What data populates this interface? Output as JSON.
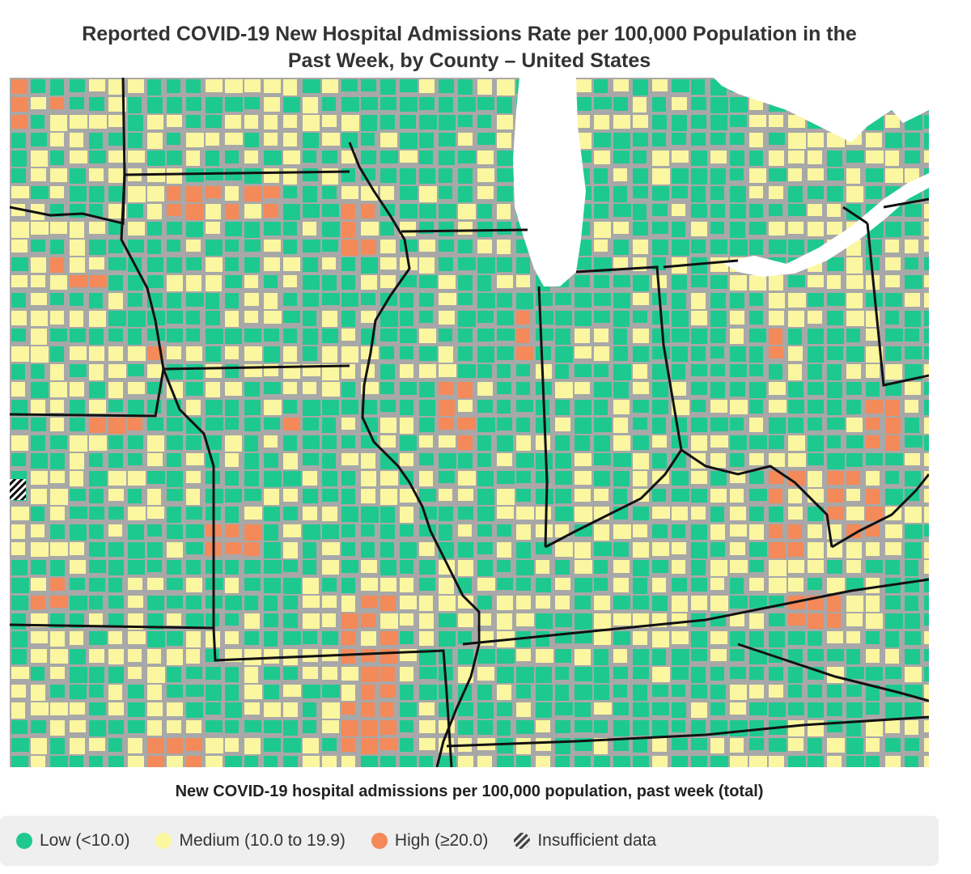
{
  "title_line1": "Reported COVID-19 New Hospital Admissions Rate per 100,000 Population in the",
  "title_line2": "Past Week, by County – United States",
  "subtitle": "New COVID-19 hospital admissions per 100,000 population, past week (total)",
  "colors": {
    "low": "#1ec98f",
    "medium": "#fbf6a0",
    "high": "#f4895a",
    "border": "#a8a8a8",
    "water": "#ffffff",
    "state_line": "#111111"
  },
  "legend": [
    {
      "key": "low",
      "label": "Low (<10.0)"
    },
    {
      "key": "medium",
      "label": "Medium (10.0 to 19.9)"
    },
    {
      "key": "high",
      "label": "High (≥20.0)"
    },
    {
      "key": "insufficient",
      "label": "Insufficient data"
    }
  ]
}
